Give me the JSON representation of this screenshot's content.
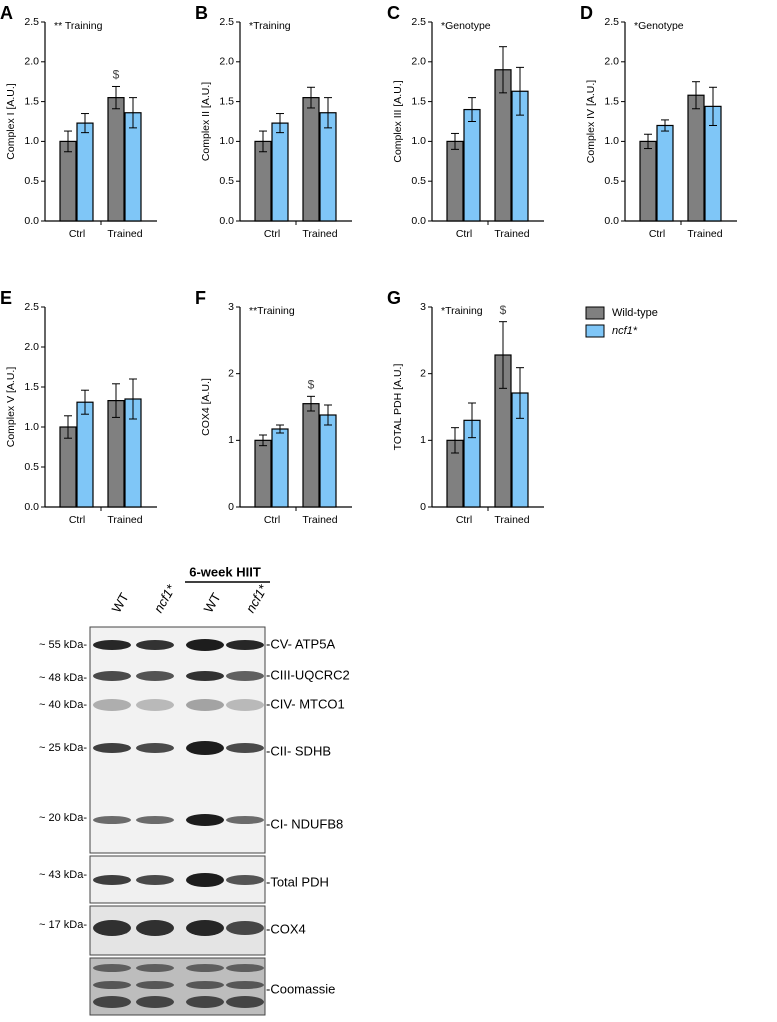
{
  "chart_data": [
    {
      "type": "bar",
      "panel": "A",
      "ylabel": "Complex I [A.U.]",
      "annotation": "** Training",
      "marker": "$",
      "categories": [
        "Ctrl",
        "Trained"
      ],
      "series": [
        {
          "color": "#808080",
          "values": [
            1.0,
            1.55
          ],
          "errors": [
            0.13,
            0.14
          ]
        },
        {
          "color": "#7fc6f7",
          "values": [
            1.23,
            1.36
          ],
          "errors": [
            0.12,
            0.19
          ]
        }
      ],
      "ylim": [
        0,
        2.5
      ],
      "yticks": [
        {
          "value": 0,
          "label": "0.0"
        },
        0.5,
        {
          "value": 1,
          "label": "1.0"
        },
        1.5,
        {
          "value": 2,
          "label": "2.0"
        },
        2.5
      ]
    },
    {
      "type": "bar",
      "panel": "B",
      "ylabel": "Complex II [A.U.]",
      "annotation": "*Training",
      "categories": [
        "Ctrl",
        "Trained"
      ],
      "series": [
        {
          "color": "#808080",
          "values": [
            1.0,
            1.55
          ],
          "errors": [
            0.13,
            0.13
          ]
        },
        {
          "color": "#7fc6f7",
          "values": [
            1.23,
            1.36
          ],
          "errors": [
            0.12,
            0.19
          ]
        }
      ],
      "ylim": [
        0,
        2.5
      ],
      "yticks": [
        {
          "value": 0,
          "label": "0.0"
        },
        0.5,
        {
          "value": 1,
          "label": "1.0"
        },
        1.5,
        {
          "value": 2,
          "label": "2.0"
        },
        2.5
      ]
    },
    {
      "type": "bar",
      "panel": "C",
      "ylabel": "Complex III [A.U.]",
      "annotation": "*Genotype",
      "categories": [
        "Ctrl",
        "Trained"
      ],
      "series": [
        {
          "color": "#808080",
          "values": [
            1.0,
            1.9
          ],
          "errors": [
            0.1,
            0.29
          ]
        },
        {
          "color": "#7fc6f7",
          "values": [
            1.4,
            1.63
          ],
          "errors": [
            0.15,
            0.3
          ]
        }
      ],
      "ylim": [
        0,
        2.5
      ],
      "yticks": [
        {
          "value": 0,
          "label": "0.0"
        },
        0.5,
        {
          "value": 1,
          "label": "1.0"
        },
        1.5,
        {
          "value": 2,
          "label": "2.0"
        },
        2.5
      ]
    },
    {
      "type": "bar",
      "panel": "D",
      "ylabel": "Complex IV [A.U.]",
      "annotation": "*Genotype",
      "categories": [
        "Ctrl",
        "Trained"
      ],
      "series": [
        {
          "color": "#808080",
          "values": [
            1.0,
            1.58
          ],
          "errors": [
            0.09,
            0.17
          ]
        },
        {
          "color": "#7fc6f7",
          "values": [
            1.2,
            1.44
          ],
          "errors": [
            0.07,
            0.24
          ]
        }
      ],
      "ylim": [
        0,
        2.5
      ],
      "yticks": [
        {
          "value": 0,
          "label": "0.0"
        },
        0.5,
        {
          "value": 1,
          "label": "1.0"
        },
        1.5,
        {
          "value": 2,
          "label": "2.0"
        },
        2.5
      ]
    },
    {
      "type": "bar",
      "panel": "E",
      "ylabel": "Complex V [A.U.]",
      "categories": [
        "Ctrl",
        "Trained"
      ],
      "series": [
        {
          "color": "#808080",
          "values": [
            1.0,
            1.33
          ],
          "errors": [
            0.14,
            0.21
          ]
        },
        {
          "color": "#7fc6f7",
          "values": [
            1.31,
            1.35
          ],
          "errors": [
            0.15,
            0.25
          ]
        }
      ],
      "ylim": [
        0,
        2.5
      ],
      "yticks": [
        {
          "value": 0,
          "label": "0.0"
        },
        0.5,
        {
          "value": 1,
          "label": "1.0"
        },
        1.5,
        {
          "value": 2,
          "label": "2.0"
        },
        2.5
      ]
    },
    {
      "type": "bar",
      "panel": "F",
      "ylabel": "COX4 [A.U.]",
      "annotation": "**Training",
      "marker": "$",
      "categories": [
        "Ctrl",
        "Trained"
      ],
      "series": [
        {
          "color": "#808080",
          "values": [
            1.0,
            1.55
          ],
          "errors": [
            0.08,
            0.11
          ]
        },
        {
          "color": "#7fc6f7",
          "values": [
            1.17,
            1.38
          ],
          "errors": [
            0.06,
            0.15
          ]
        }
      ],
      "ylim": [
        0,
        3
      ],
      "yticks": [
        0,
        1,
        2,
        3
      ]
    },
    {
      "type": "bar",
      "panel": "G",
      "ylabel": "TOTAL PDH  [A.U.]",
      "annotation": "*Training",
      "marker": "$",
      "categories": [
        "Ctrl",
        "Trained"
      ],
      "series": [
        {
          "name": "Wild-type",
          "color": "#808080",
          "values": [
            1.0,
            2.28
          ],
          "errors": [
            0.19,
            0.5
          ]
        },
        {
          "name": "ncf1*",
          "color": "#7fc6f7",
          "values": [
            1.3,
            1.71
          ],
          "errors": [
            0.26,
            0.38
          ]
        }
      ],
      "ylim": [
        0,
        3
      ],
      "yticks": [
        0,
        1,
        2,
        3
      ],
      "legend": "right"
    }
  ],
  "blot": {
    "header": "6-week HIIT",
    "lanes": [
      "WT",
      "ncf1*",
      "WT",
      "ncf1*"
    ],
    "markers": [
      "~ 55 kDa-",
      "~ 48 kDa-",
      "~ 40 kDa-",
      "~ 25 kDa-",
      "~ 20 kDa-",
      "~ 43 kDa-",
      "~ 17 kDa-"
    ],
    "proteins": [
      "-CV- ATP5A",
      "-CIII-UQCRC2",
      "-CIV- MTCO1",
      "-CII- SDHB",
      "-CI- NDUFB8",
      "-Total PDH",
      "-COX4",
      "-Coomassie"
    ]
  }
}
